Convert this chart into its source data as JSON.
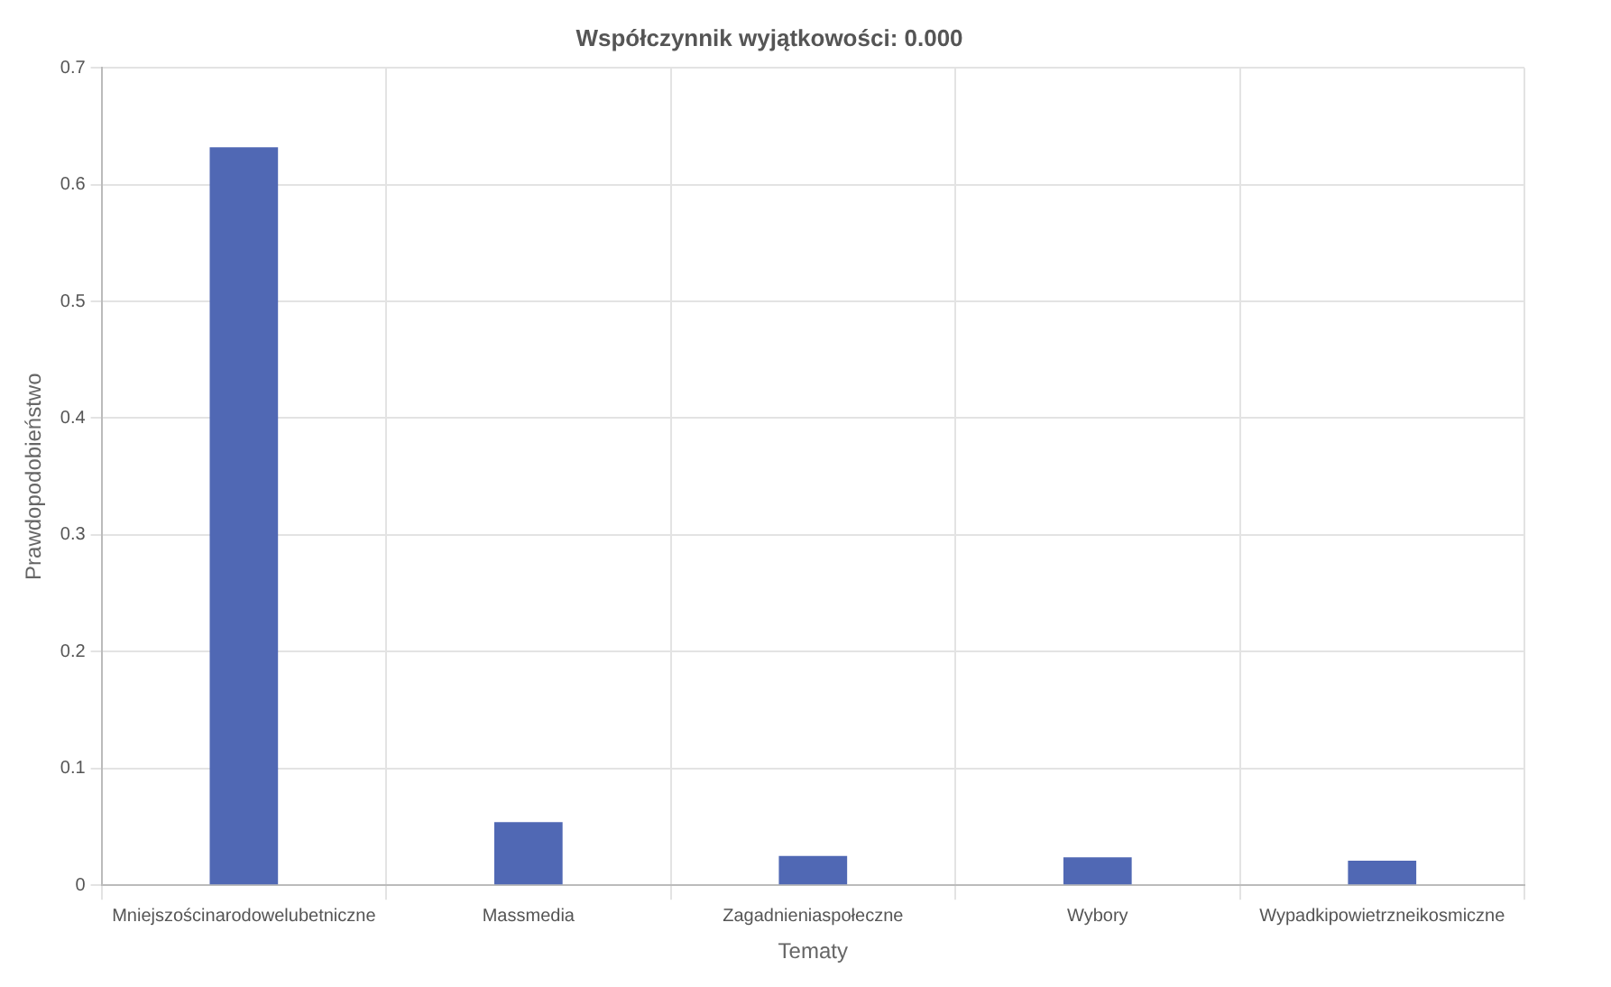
{
  "chart_data": {
    "type": "bar",
    "title": "Współczynnik wyjątkowości: 0.000",
    "xlabel": "Tematy",
    "ylabel": "Prawdopodobieństwo",
    "categories": [
      "Mniejszościnarodowelubetniczne",
      "Massmedia",
      "Zagadnieniaspołeczne",
      "Wybory",
      "Wypadkipowietrzneikosmiczne"
    ],
    "values": [
      0.632,
      0.054,
      0.025,
      0.024,
      0.021
    ],
    "color": "#5068b4",
    "ylim": [
      0,
      0.7
    ],
    "yticks": [
      0,
      0.1,
      0.2,
      0.3,
      0.4,
      0.5,
      0.6,
      0.7
    ],
    "grid": true
  }
}
